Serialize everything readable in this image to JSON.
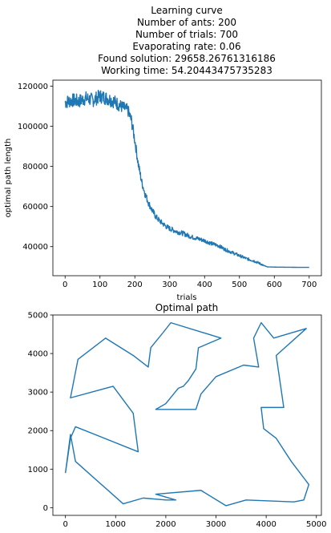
{
  "chart_data": [
    {
      "type": "line",
      "title_lines": [
        "Learning curve",
        "Number of ants: 200",
        "Number of trials: 700",
        "Evaporating rate: 0.06",
        "Found solution: 29658.26761316186",
        "Working time: 54.20443475735283"
      ],
      "xlabel": "trials",
      "ylabel": "optimal path length",
      "xlim": [
        -35,
        735
      ],
      "ylim": [
        25500,
        123000
      ],
      "xticks": [
        0,
        100,
        200,
        300,
        400,
        500,
        600,
        700
      ],
      "yticks": [
        40000,
        60000,
        80000,
        100000,
        120000
      ],
      "ytick_labels": [
        "40000",
        "60000",
        "80000",
        "100000",
        "120000"
      ],
      "grid": false,
      "series": [
        {
          "color": "#1f77b4",
          "x": [
            0,
            20,
            40,
            60,
            80,
            100,
            120,
            140,
            160,
            180,
            190,
            200,
            210,
            220,
            230,
            240,
            250,
            260,
            270,
            280,
            290,
            300,
            320,
            340,
            360,
            380,
            400,
            420,
            440,
            460,
            480,
            500,
            520,
            540,
            560,
            570,
            580,
            600,
            650,
            700
          ],
          "y": [
            112000,
            113000,
            112500,
            114000,
            113000,
            115000,
            114000,
            112500,
            110000,
            108000,
            103000,
            93000,
            81000,
            72000,
            66000,
            61500,
            58000,
            55000,
            53000,
            51500,
            50000,
            49000,
            47500,
            46500,
            45000,
            44000,
            43000,
            41500,
            40500,
            38500,
            37000,
            35500,
            34000,
            33000,
            31500,
            30500,
            29900,
            29800,
            29700,
            29658
          ],
          "noise": [
            3500,
            3500,
            3500,
            3500,
            3500,
            3500,
            3500,
            3500,
            3200,
            3000,
            3000,
            2600,
            2300,
            2000,
            1800,
            1700,
            1600,
            1500,
            1400,
            1300,
            1300,
            1300,
            1200,
            1200,
            1100,
            1100,
            1000,
            1000,
            900,
            900,
            800,
            800,
            700,
            700,
            600,
            300,
            0,
            0,
            0,
            0
          ]
        }
      ]
    },
    {
      "type": "line",
      "title": "Optimal path",
      "xlim": [
        -250,
        5100
      ],
      "ylim": [
        -200,
        5000
      ],
      "xticks": [
        0,
        1000,
        2000,
        3000,
        4000,
        5000
      ],
      "yticks": [
        0,
        1000,
        2000,
        3000,
        4000,
        5000
      ],
      "grid": false,
      "series": [
        {
          "color": "#1f77b4",
          "x": [
            0,
            100,
            200,
            1150,
            1550,
            2000,
            2200,
            1800,
            2700,
            3200,
            3600,
            4550,
            4750,
            4850,
            4500,
            4200,
            3950,
            3900,
            4350,
            4200,
            4800,
            4150,
            3900,
            3750,
            3850,
            3550,
            3000,
            2700,
            2600,
            2200,
            1800,
            2000,
            2250,
            2350,
            2450,
            2600,
            2650,
            3100,
            2100,
            1950,
            1700,
            1650,
            1350,
            800,
            250,
            100,
            950,
            1350,
            1450,
            200,
            100,
            0
          ],
          "y": [
            900,
            1900,
            1200,
            100,
            250,
            200,
            200,
            350,
            450,
            50,
            200,
            150,
            200,
            600,
            1200,
            1800,
            2050,
            2600,
            2600,
            3950,
            4650,
            4400,
            4800,
            4400,
            3650,
            3700,
            3400,
            2950,
            2550,
            2550,
            2550,
            2700,
            3100,
            3150,
            3300,
            3600,
            4150,
            4400,
            4800,
            4550,
            4150,
            3650,
            3950,
            4400,
            3850,
            2850,
            3150,
            2450,
            1450,
            2100,
            1800,
            900
          ]
        }
      ]
    }
  ]
}
